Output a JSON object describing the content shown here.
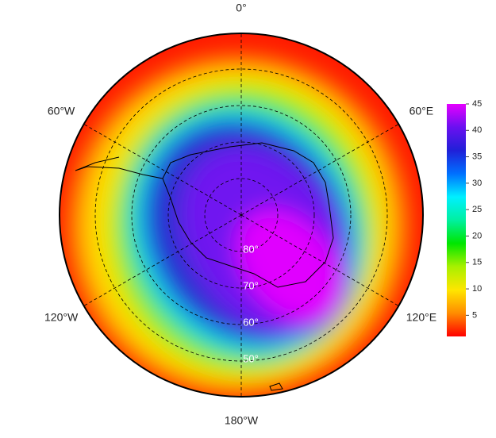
{
  "map": {
    "lon_labels": [
      {
        "value": 0,
        "label": "0°"
      },
      {
        "value": 60,
        "label": "60°E"
      },
      {
        "value": 120,
        "label": "120°E"
      },
      {
        "value": 180,
        "label": "180°W"
      },
      {
        "value": -120,
        "label": "120°W"
      },
      {
        "value": -60,
        "label": "60°W"
      }
    ],
    "lat_labels": [
      {
        "value": 80,
        "label": "80°"
      },
      {
        "value": 70,
        "label": "70°"
      },
      {
        "value": 60,
        "label": "60°"
      },
      {
        "value": 50,
        "label": "50°"
      }
    ]
  },
  "colorbar": {
    "lim": [
      1,
      45
    ],
    "ticks": [
      5,
      10,
      15,
      20,
      25,
      30,
      35,
      40,
      45
    ],
    "colors": [
      "#ff0000",
      "#ff8c00",
      "#ffe600",
      "#a8f000",
      "#00e600",
      "#00f0a0",
      "#00f0ff",
      "#0070ff",
      "#2020d8",
      "#6a10f0",
      "#e600ff"
    ]
  }
}
